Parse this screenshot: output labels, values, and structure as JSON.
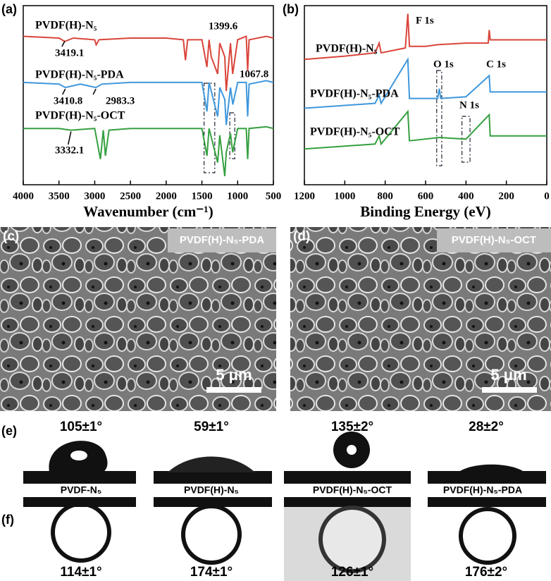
{
  "chart_data": [
    {
      "type": "line",
      "panel_label": "(a)",
      "xlabel": "Wavenumber (cm⁻¹)",
      "xlim": [
        4000,
        500
      ],
      "xticks": [
        4000,
        3500,
        3000,
        2500,
        2000,
        1500,
        1000,
        500
      ],
      "ylim": [
        -5,
        100
      ],
      "series": [
        {
          "name": "PVDF(H)-N₅",
          "color": "#d9453b",
          "x": [
            4000,
            3500,
            3419,
            3300,
            3000,
            2980,
            2940,
            2500,
            2000,
            1760,
            1730,
            1700,
            1500,
            1430,
            1400,
            1370,
            1280,
            1250,
            1180,
            1160,
            1100,
            1070,
            1000,
            880,
            860,
            840,
            600,
            500
          ],
          "values": [
            82,
            81,
            79,
            81,
            80,
            77,
            80,
            81,
            81,
            80,
            68,
            80,
            80,
            64,
            80,
            70,
            60,
            78,
            70,
            50,
            78,
            60,
            80,
            82,
            62,
            80,
            82,
            81
          ]
        },
        {
          "name": "PVDF(H)-N₅-PDA",
          "color": "#3f97dc",
          "x": [
            4000,
            3500,
            3411,
            3200,
            2983,
            2900,
            2500,
            2000,
            1500,
            1430,
            1400,
            1280,
            1250,
            1180,
            1160,
            1100,
            1068,
            1000,
            880,
            860,
            840,
            600,
            500
          ],
          "values": [
            55,
            54,
            52,
            54,
            52,
            54,
            55,
            55,
            55,
            38,
            55,
            35,
            52,
            45,
            30,
            52,
            42,
            55,
            55,
            35,
            54,
            56,
            55
          ]
        },
        {
          "name": "PVDF(H)-N₅-OCT",
          "color": "#35a040",
          "x": [
            4000,
            3500,
            3332,
            3000,
            2920,
            2880,
            2850,
            2800,
            2500,
            2000,
            1500,
            1430,
            1400,
            1280,
            1250,
            1180,
            1160,
            1100,
            1070,
            1000,
            880,
            860,
            840,
            600,
            500
          ],
          "values": [
            28,
            28,
            27,
            28,
            10,
            27,
            12,
            27,
            28,
            28,
            28,
            12,
            28,
            8,
            24,
            0,
            14,
            25,
            14,
            28,
            28,
            10,
            28,
            29,
            28
          ]
        }
      ],
      "annotations": [
        "3419.1",
        "1399.6",
        "1067.8",
        "3410.8",
        "2983.3",
        "3332.1"
      ]
    },
    {
      "type": "line",
      "panel_label": "(b)",
      "xlabel": "Binding Energy (eV)",
      "xlim": [
        1200,
        0
      ],
      "xticks": [
        1200,
        1000,
        800,
        600,
        400,
        200,
        0
      ],
      "ylim": [
        -5,
        105
      ],
      "series": [
        {
          "name": "PVDF(H)-N₅",
          "color": "#d9453b",
          "x": [
            1200,
            1000,
            850,
            830,
            820,
            700,
            688,
            680,
            600,
            540,
            400,
            290,
            285,
            280,
            0
          ],
          "values": [
            72,
            74,
            76,
            82,
            76,
            79,
            100,
            80,
            80,
            81,
            82,
            82,
            90,
            84,
            84
          ]
        },
        {
          "name": "PVDF(H)-N₅-PDA",
          "color": "#3f97dc",
          "x": [
            1200,
            850,
            830,
            820,
            688,
            680,
            540,
            532,
            525,
            400,
            285,
            280,
            0
          ],
          "values": [
            42,
            45,
            50,
            45,
            72,
            48,
            48,
            54,
            48,
            49,
            62,
            52,
            52
          ]
        },
        {
          "name": "PVDF(H)-N₅-OCT",
          "color": "#35a040",
          "x": [
            1200,
            850,
            830,
            820,
            688,
            680,
            532,
            400,
            285,
            280,
            0
          ],
          "values": [
            17,
            20,
            25,
            20,
            40,
            22,
            24,
            23,
            38,
            25,
            25
          ]
        }
      ],
      "annotations": [
        "F 1s",
        "O 1s",
        "C 1s",
        "N 1s"
      ]
    }
  ],
  "images": [
    {
      "panel_label": "(c)",
      "caption": "PVDF(H)-N₅-PDA",
      "scale_bar": "5 μm"
    },
    {
      "panel_label": "(d)",
      "caption": "PVDF(H)-N₅-OCT",
      "scale_bar": "5 μm"
    }
  ],
  "contact_angles": {
    "e": {
      "panel_label": "(e)",
      "angles": [
        "105±1°",
        "59±1°",
        "135±2°",
        "28±2°"
      ]
    },
    "samples": [
      "PVDF-N₅",
      "PVDF(H)-N₅",
      "PVDF(H)-N₅-OCT",
      "PVDF(H)-N₅-PDA"
    ],
    "f": {
      "panel_label": "(f)",
      "angles": [
        "114±1°",
        "174±1°",
        "126±1°",
        "176±2°"
      ]
    }
  }
}
